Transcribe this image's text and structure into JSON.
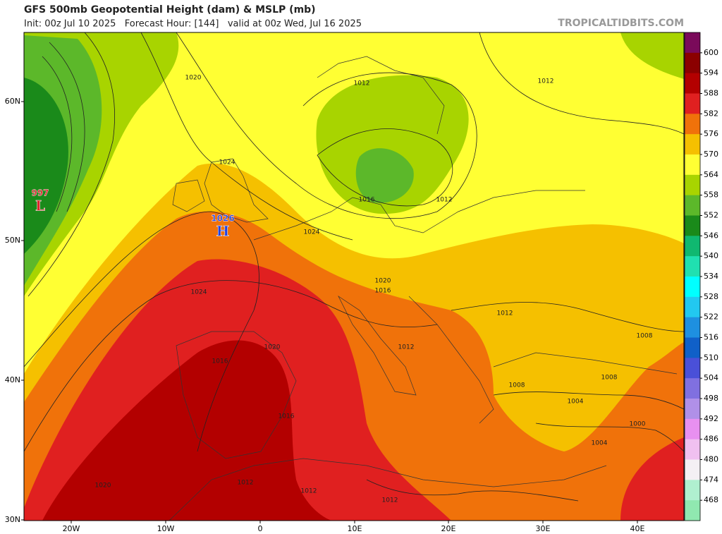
{
  "header": {
    "title": "GFS 500mb Geopotential Height (dam) & MSLP (mb)",
    "subtitle": "Init: 00z Jul 10 2025   Forecast Hour: [144]   valid at 00z Wed, Jul 16 2025",
    "credit": "TROPICALTIDBITS.COM"
  },
  "map": {
    "lat_labels": [
      "60N",
      "50N",
      "40N",
      "30N"
    ],
    "lon_labels": [
      "20W",
      "10W",
      "0",
      "10E",
      "20E",
      "30E",
      "40E"
    ],
    "pressure_centers": [
      {
        "label": "L",
        "value": 997,
        "color": "#e0202a"
      },
      {
        "label": "H",
        "value": 1026,
        "color": "#2040e0"
      }
    ],
    "isobar_labels": [
      1020,
      1012,
      1012,
      1024,
      1016,
      1012,
      1024,
      1024,
      1020,
      1016,
      1012,
      1008,
      1020,
      1016,
      1012,
      1008,
      1008,
      1004,
      1000,
      1004,
      1016,
      1020,
      1012,
      1012,
      1012
    ]
  },
  "colorbar": {
    "colors": [
      "#7a0a5a",
      "#8b0000",
      "#b30000",
      "#e02020",
      "#f0720a",
      "#f5c000",
      "#ffff33",
      "#a8d400",
      "#5cb82a",
      "#1a8a1a",
      "#10b870",
      "#20e0b0",
      "#00ffff",
      "#22c8f0",
      "#1e90e0",
      "#1060c8",
      "#4a50d8",
      "#8070e0",
      "#b090e8",
      "#e890f0",
      "#f0c0f0",
      "#f4f0f4",
      "#b0f0d0",
      "#90e8b0"
    ],
    "ticks": [
      600,
      594,
      588,
      582,
      576,
      570,
      564,
      558,
      552,
      546,
      540,
      534,
      528,
      522,
      516,
      510,
      504,
      498,
      492,
      486,
      480,
      474,
      468
    ]
  }
}
